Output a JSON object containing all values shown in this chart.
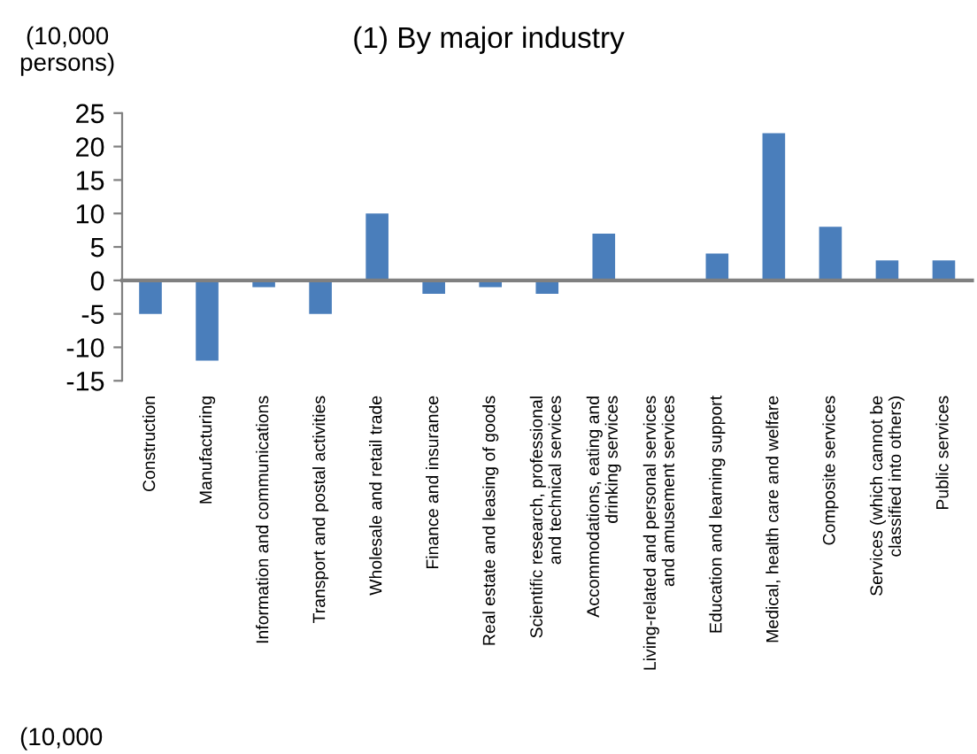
{
  "chart_data": {
    "type": "bar",
    "title": "(1) By major industry",
    "ylabel": "(10,000\npersons)",
    "categories": [
      "Construction",
      "Manufacturing",
      "Information and communications",
      "Transport and postal activities",
      "Wholesale and retail trade",
      "Finance and insurance",
      "Real estate and leasing of goods",
      "Scientific research, professional\nand technical services",
      "Accommodations, eating and\ndrinking services",
      "Living-related and personal services\nand amusement services",
      "Education and learning support",
      "Medical, health care and welfare",
      "Composite services",
      "Services (which cannot be\nclassified into others)",
      "Public services"
    ],
    "values": [
      -5,
      -12,
      -1,
      -5,
      10,
      -2,
      -1,
      -2,
      7,
      0,
      4,
      22,
      8,
      3,
      3
    ],
    "color": "#4a7ebb",
    "ylim": [
      -15,
      25
    ],
    "yticks": [
      -15,
      -10,
      -5,
      0,
      5,
      10,
      15,
      20,
      25
    ],
    "legend": false,
    "annotations": [
      "(10,000"
    ]
  }
}
